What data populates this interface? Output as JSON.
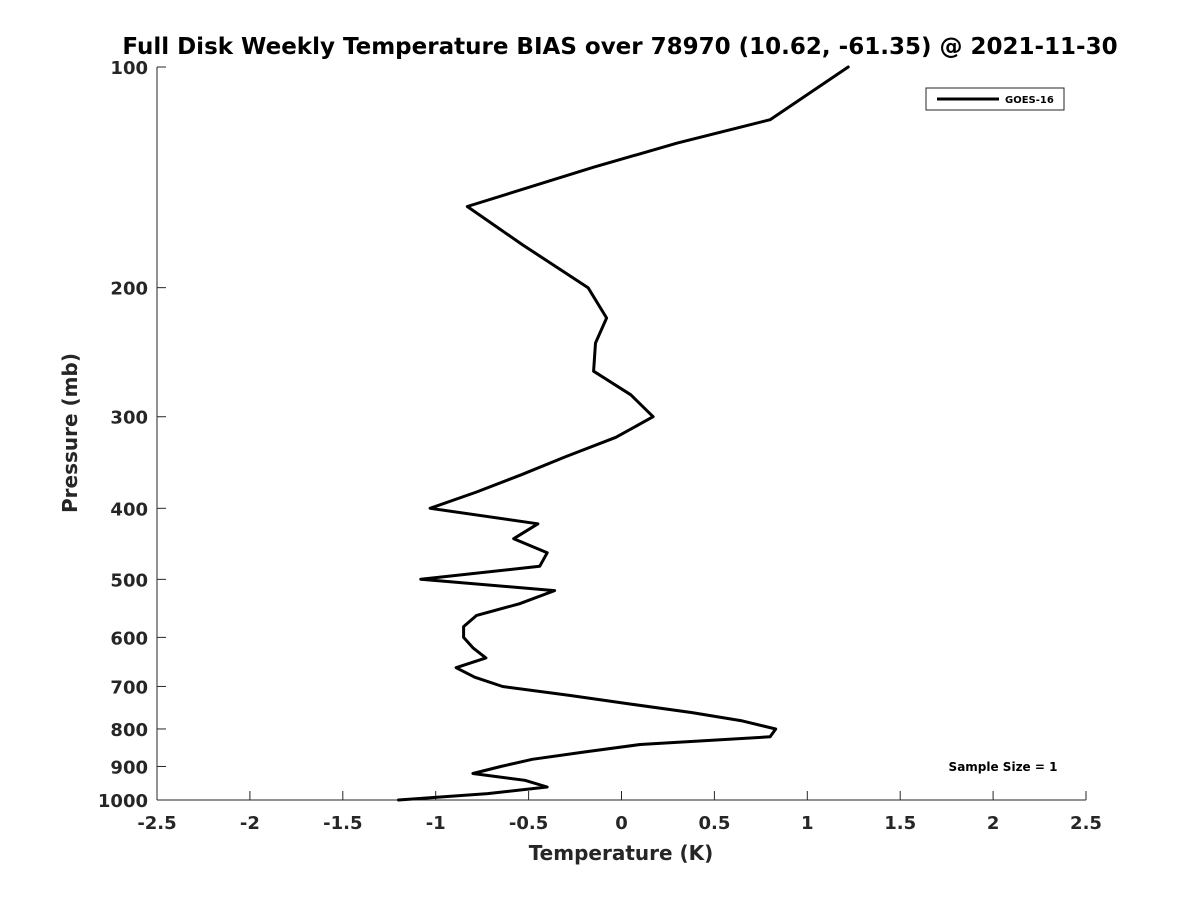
{
  "chart_data": {
    "type": "line",
    "title": "Full Disk Weekly Temperature BIAS over 78970 (10.62, -61.35) @ 2021-11-30",
    "xlabel": "Temperature (K)",
    "ylabel": "Pressure (mb)",
    "xlim": [
      -2.5,
      2.5
    ],
    "ylim": [
      100,
      1000
    ],
    "yscale": "log",
    "yreversed": true,
    "xticks": [
      -2.5,
      -2,
      -1.5,
      -1,
      -0.5,
      0,
      0.5,
      1,
      1.5,
      2,
      2.5
    ],
    "xtick_labels": [
      "-2.5",
      "-2",
      "-1.5",
      "-1",
      "-0.5",
      "0",
      "0.5",
      "1",
      "1.5",
      "2",
      "2.5"
    ],
    "yticks": [
      100,
      200,
      300,
      400,
      500,
      600,
      700,
      800,
      900,
      1000
    ],
    "ytick_labels": [
      "100",
      "200",
      "300",
      "400",
      "500",
      "600",
      "700",
      "800",
      "900",
      "1000"
    ],
    "grid": false,
    "legend_position": "top-right",
    "series": [
      {
        "name": "GOES-16",
        "color": "#000000",
        "points": [
          {
            "x": 1.22,
            "p": 100
          },
          {
            "x": 0.8,
            "p": 118
          },
          {
            "x": 0.3,
            "p": 127
          },
          {
            "x": -0.15,
            "p": 137
          },
          {
            "x": -0.83,
            "p": 155
          },
          {
            "x": -0.53,
            "p": 175
          },
          {
            "x": -0.18,
            "p": 200
          },
          {
            "x": -0.08,
            "p": 220
          },
          {
            "x": -0.14,
            "p": 238
          },
          {
            "x": -0.15,
            "p": 260
          },
          {
            "x": 0.05,
            "p": 280
          },
          {
            "x": 0.17,
            "p": 300
          },
          {
            "x": -0.03,
            "p": 320
          },
          {
            "x": -0.3,
            "p": 340
          },
          {
            "x": -0.54,
            "p": 360
          },
          {
            "x": -0.78,
            "p": 380
          },
          {
            "x": -1.03,
            "p": 400
          },
          {
            "x": -0.45,
            "p": 420
          },
          {
            "x": -0.58,
            "p": 440
          },
          {
            "x": -0.4,
            "p": 460
          },
          {
            "x": -0.44,
            "p": 480
          },
          {
            "x": -1.08,
            "p": 500
          },
          {
            "x": -0.36,
            "p": 518
          },
          {
            "x": -0.55,
            "p": 540
          },
          {
            "x": -0.78,
            "p": 560
          },
          {
            "x": -0.85,
            "p": 580
          },
          {
            "x": -0.85,
            "p": 600
          },
          {
            "x": -0.8,
            "p": 620
          },
          {
            "x": -0.73,
            "p": 640
          },
          {
            "x": -0.89,
            "p": 660
          },
          {
            "x": -0.79,
            "p": 680
          },
          {
            "x": -0.64,
            "p": 700
          },
          {
            "x": -0.28,
            "p": 720
          },
          {
            "x": 0.05,
            "p": 740
          },
          {
            "x": 0.38,
            "p": 760
          },
          {
            "x": 0.65,
            "p": 780
          },
          {
            "x": 0.83,
            "p": 800
          },
          {
            "x": 0.8,
            "p": 820
          },
          {
            "x": 0.1,
            "p": 840
          },
          {
            "x": -0.2,
            "p": 860
          },
          {
            "x": -0.48,
            "p": 880
          },
          {
            "x": -0.65,
            "p": 900
          },
          {
            "x": -0.8,
            "p": 920
          },
          {
            "x": -0.52,
            "p": 940
          },
          {
            "x": -0.4,
            "p": 960
          },
          {
            "x": -0.72,
            "p": 980
          },
          {
            "x": -1.2,
            "p": 1000
          }
        ]
      }
    ],
    "annotations": [
      {
        "text": "Sample Size = 1",
        "position": "bottom-right"
      }
    ]
  }
}
